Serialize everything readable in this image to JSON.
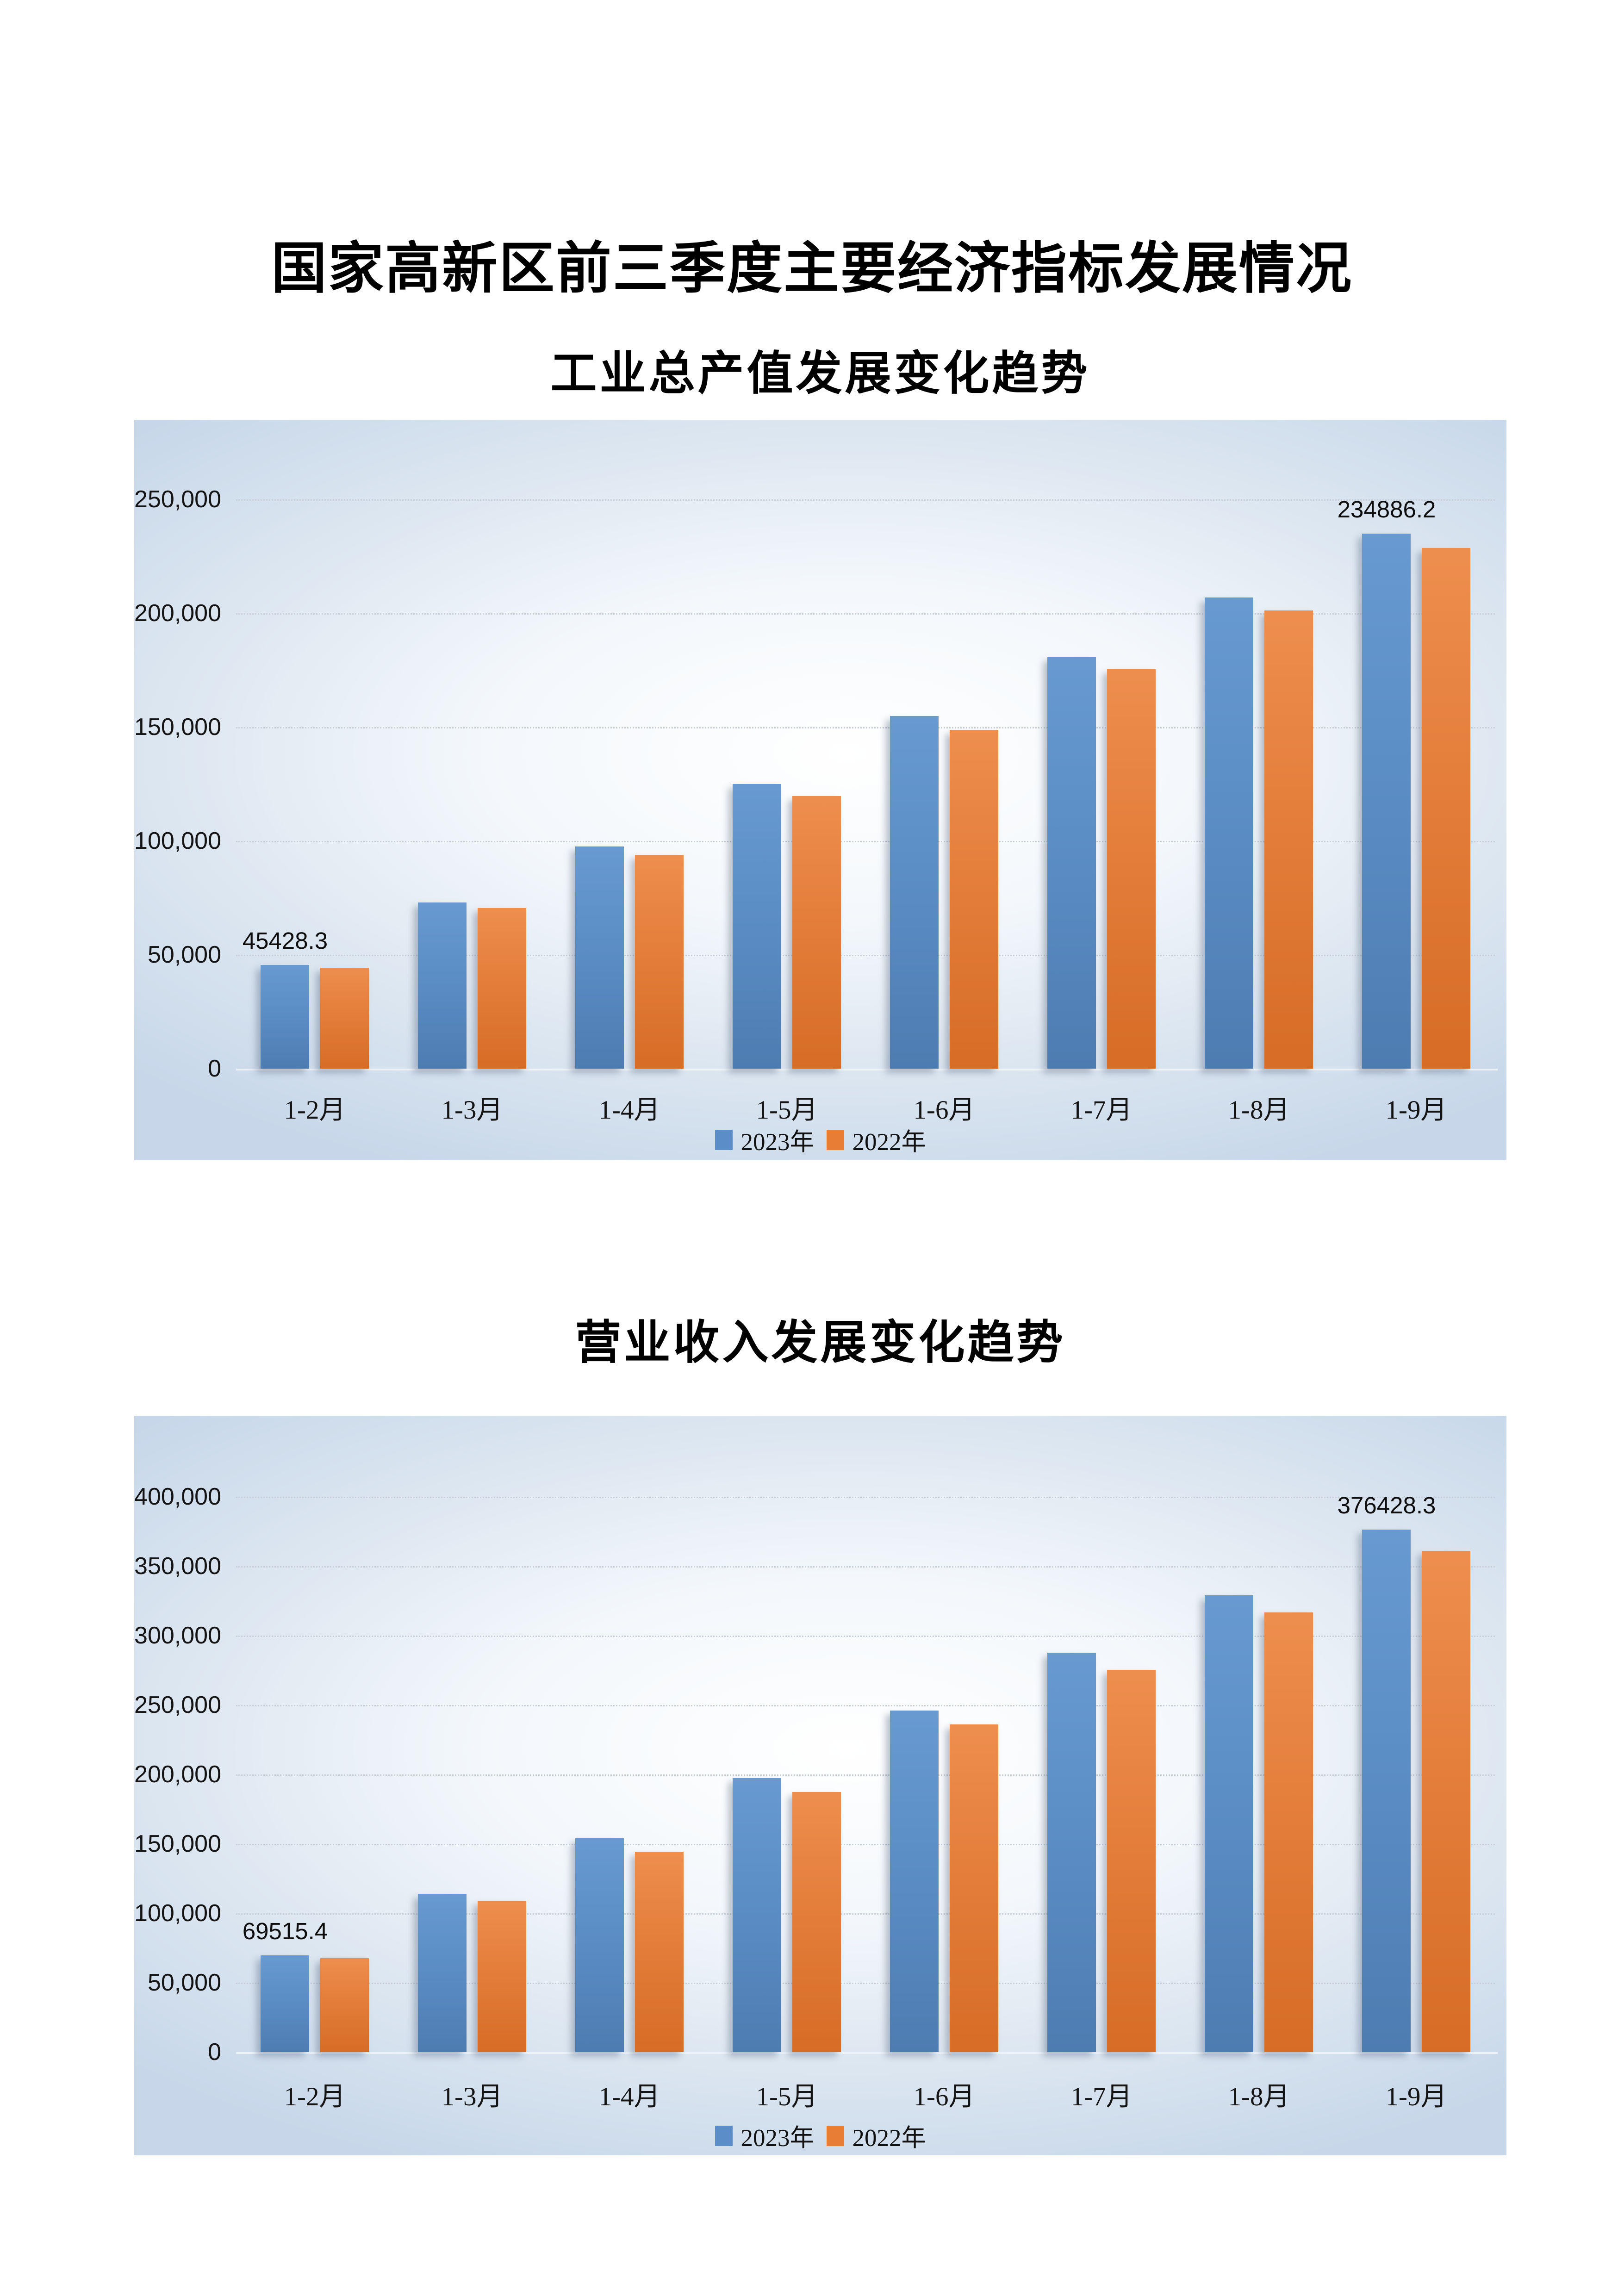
{
  "page": {
    "title": "国家高新区前三季度主要经济指标发展情况"
  },
  "legend": {
    "items": [
      "2023年",
      "2022年"
    ]
  },
  "colors": {
    "series_2023_blue": "#5B8EC8",
    "series_2022_orange": "#E67E35",
    "canvas_edge_blue": "#C7D7E9",
    "canvas_center": "#FFFFFF",
    "gridline_gray": "#C8CFD9"
  },
  "chart_data": [
    {
      "type": "bar",
      "title": "工业总产值发展变化趋势",
      "categories": [
        "1-2月",
        "1-3月",
        "1-4月",
        "1-5月",
        "1-6月",
        "1-7月",
        "1-8月",
        "1-9月"
      ],
      "series": [
        {
          "name": "2023年",
          "values": [
            45428.3,
            72900,
            97500,
            124900,
            154800,
            180600,
            206900,
            234886.2
          ],
          "point_labels": {
            "0": "45428.3",
            "7": "234886.2"
          }
        },
        {
          "name": "2022年",
          "values": [
            44300,
            70600,
            94000,
            119700,
            148700,
            175500,
            201200,
            228700
          ]
        }
      ],
      "xlabel": "",
      "ylabel": "",
      "ylim": [
        0,
        250000
      ],
      "ytick_step": 50000,
      "ytick_labels": [
        "0",
        "50,000",
        "100,000",
        "150,000",
        "200,000",
        "250,000"
      ],
      "grid": "horizontal-dotted",
      "legend_position": "bottom"
    },
    {
      "type": "bar",
      "title": "营业收入发展变化趋势",
      "categories": [
        "1-2月",
        "1-3月",
        "1-4月",
        "1-5月",
        "1-6月",
        "1-7月",
        "1-8月",
        "1-9月"
      ],
      "series": [
        {
          "name": "2023年",
          "values": [
            69515.4,
            114000,
            154000,
            197300,
            246100,
            287600,
            329000,
            376428.3
          ],
          "point_labels": {
            "0": "69515.4",
            "7": "376428.3"
          }
        },
        {
          "name": "2022年",
          "values": [
            67600,
            108800,
            144200,
            187200,
            236000,
            275300,
            316500,
            361000
          ]
        }
      ],
      "xlabel": "",
      "ylabel": "",
      "ylim": [
        0,
        400000
      ],
      "ytick_step": 50000,
      "ytick_labels": [
        "0",
        "50,000",
        "100,000",
        "150,000",
        "200,000",
        "250,000",
        "300,000",
        "350,000",
        "400,000"
      ],
      "grid": "horizontal-dotted",
      "legend_position": "bottom"
    }
  ]
}
